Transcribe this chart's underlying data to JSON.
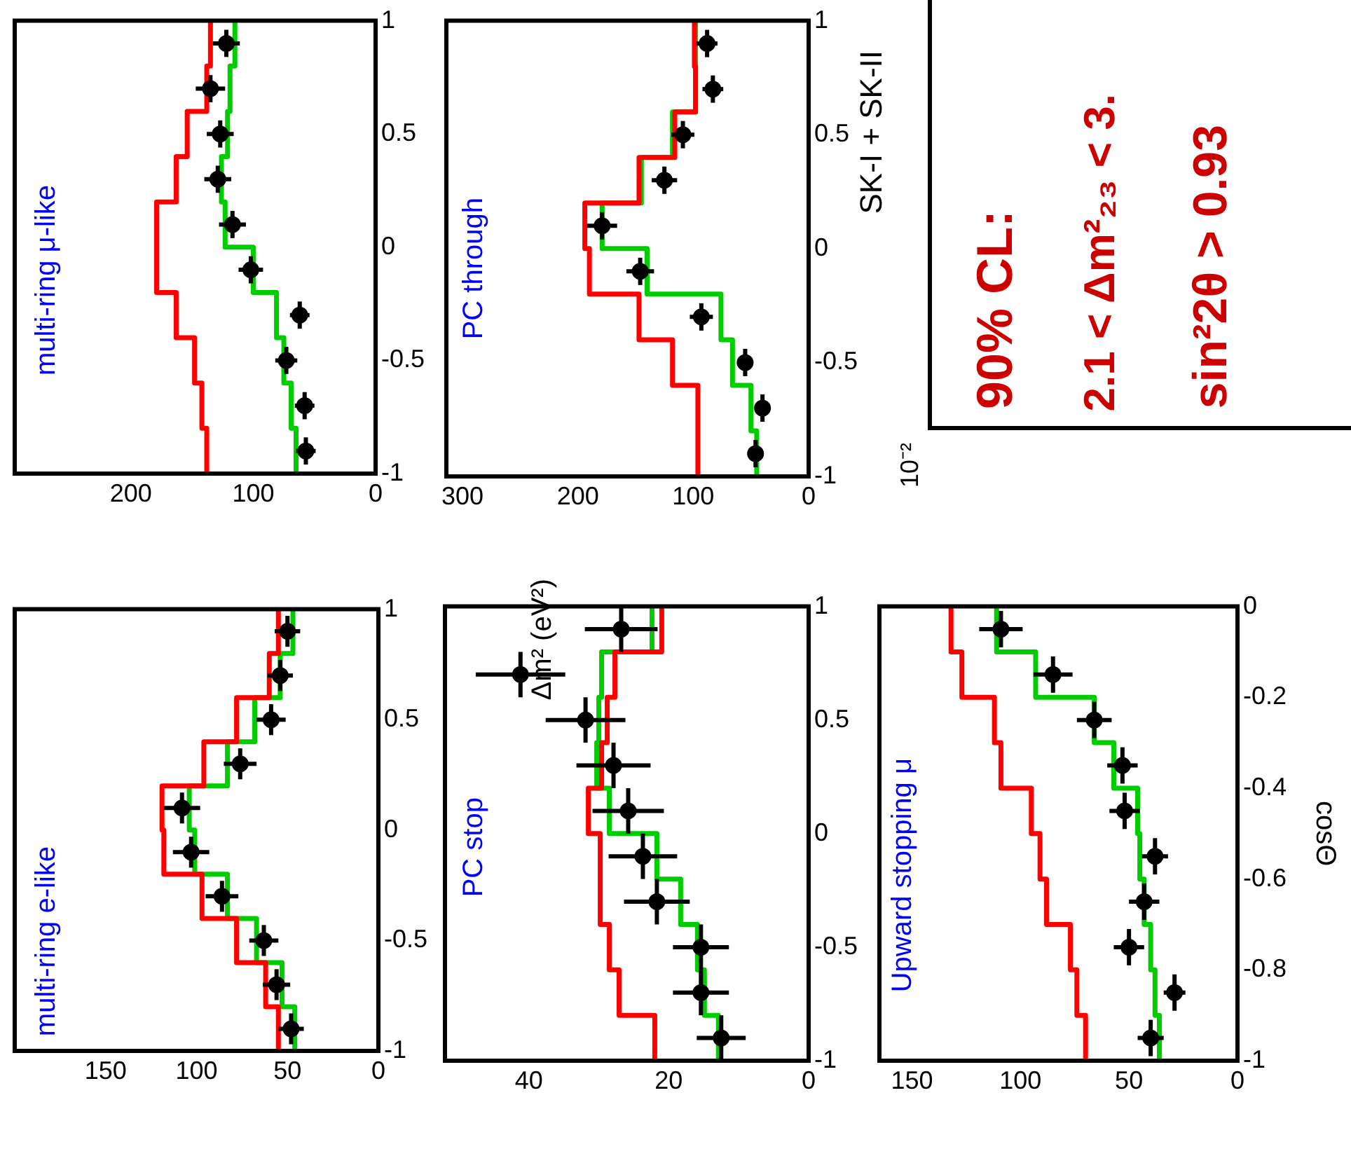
{
  "chart_data": [
    {
      "type": "line",
      "title": "multi-ring μ-like",
      "xlim": [
        295,
        0
      ],
      "xticks": [
        0,
        100,
        200
      ],
      "ylim": [
        -1,
        1
      ],
      "yticks": [
        -1,
        -0.5,
        0,
        0.5,
        1
      ],
      "series": [
        {
          "type": "line",
          "color": "#ff0000",
          "x": [
            138,
            138,
            142,
            142,
            148,
            148,
            163,
            163,
            179,
            179,
            163,
            163,
            154,
            154,
            138,
            138,
            135,
            135
          ],
          "values": [
            -1,
            -0.8,
            -0.8,
            -0.6,
            -0.6,
            -0.4,
            -0.4,
            -0.2,
            -0.2,
            0.2,
            0.2,
            0.4,
            0.4,
            0.6,
            0.6,
            0.8,
            0.8,
            1
          ]
        },
        {
          "type": "line",
          "color": "#00cc00",
          "x": [
            65,
            65,
            69,
            69,
            75,
            75,
            81,
            81,
            100,
            100,
            123,
            123,
            126,
            126,
            121,
            121,
            119,
            119,
            115,
            115
          ],
          "values": [
            -1,
            -0.8,
            -0.8,
            -0.6,
            -0.6,
            -0.4,
            -0.4,
            -0.2,
            -0.2,
            0,
            0,
            0.2,
            0.2,
            0.4,
            0.4,
            0.6,
            0.6,
            0.8,
            0.8,
            1
          ]
        },
        {
          "type": "scatter",
          "marker": "circle",
          "color": "#000000",
          "x": [
            57,
            58,
            73,
            62,
            102,
            117,
            129,
            127,
            135,
            122
          ],
          "values": [
            -0.9,
            -0.7,
            -0.5,
            -0.3,
            -0.1,
            0.1,
            0.3,
            0.5,
            0.7,
            0.9
          ],
          "xerrors": [
            8,
            8,
            9,
            8,
            10,
            11,
            11,
            11,
            12,
            11
          ],
          "errors": [
            0.06,
            0.06,
            0.06,
            0.06,
            0.06,
            0.06,
            0.06,
            0.06,
            0.06,
            0.06
          ]
        }
      ]
    },
    {
      "type": "line",
      "title": "PC through",
      "xlim": [
        314,
        0
      ],
      "xticks": [
        0,
        100,
        200,
        300
      ],
      "ylim": [
        -1,
        1
      ],
      "yticks": [
        -1,
        -0.5,
        0,
        0.5,
        1
      ],
      "annotations": [
        "SK-I + SK-II"
      ],
      "series": [
        {
          "type": "line",
          "color": "#ff0000",
          "x": [
            96,
            96,
            118,
            118,
            147,
            147,
            190,
            190,
            194,
            194,
            147,
            147,
            116,
            116,
            98,
            98,
            99,
            99
          ],
          "values": [
            -1,
            -0.6,
            -0.6,
            -0.4,
            -0.4,
            -0.2,
            -0.2,
            0,
            0,
            0.2,
            0.2,
            0.4,
            0.4,
            0.6,
            0.6,
            0.8,
            0.8,
            1
          ]
        },
        {
          "type": "line",
          "color": "#00cc00",
          "x": [
            45,
            45,
            50,
            50,
            66,
            66,
            76,
            76,
            140,
            140,
            179,
            179,
            145,
            145,
            118,
            118,
            98,
            98
          ],
          "values": [
            -1,
            -0.8,
            -0.8,
            -0.6,
            -0.6,
            -0.4,
            -0.4,
            -0.2,
            -0.2,
            0,
            0,
            0.2,
            0.2,
            0.4,
            0.4,
            0.6,
            0.6,
            1
          ]
        },
        {
          "type": "scatter",
          "marker": "circle",
          "color": "#000000",
          "x": [
            46,
            40,
            55,
            93,
            146,
            179,
            125,
            109,
            83,
            88
          ],
          "values": [
            -0.9,
            -0.7,
            -0.5,
            -0.3,
            -0.1,
            0.1,
            0.3,
            0.5,
            0.7,
            0.9
          ],
          "xerrors": [
            7,
            6,
            7,
            10,
            12,
            13,
            11,
            10,
            9,
            9
          ],
          "errors": [
            0.06,
            0.06,
            0.06,
            0.06,
            0.06,
            0.06,
            0.06,
            0.06,
            0.06,
            0.06
          ]
        }
      ]
    },
    {
      "type": "other",
      "annotations": [
        "90% CL:",
        "2.1 < Δm²₂₃ < 3.",
        "sin²2θ > 0.93",
        "Δm² (eV²)",
        "10⁻²"
      ]
    },
    {
      "type": "line",
      "title": "multi-ring e-like",
      "xlim": [
        200,
        0
      ],
      "xticks": [
        0,
        50,
        100,
        150
      ],
      "ylim": [
        -1,
        1
      ],
      "yticks": [
        -1,
        -0.5,
        0,
        0.5,
        1
      ],
      "series": [
        {
          "type": "line",
          "color": "#ff0000",
          "x": [
            55,
            55,
            62,
            62,
            78,
            78,
            97,
            97,
            118,
            118,
            119,
            119,
            96,
            96,
            78,
            78,
            60,
            60,
            55,
            55
          ],
          "values": [
            -1,
            -0.8,
            -0.8,
            -0.6,
            -0.6,
            -0.4,
            -0.4,
            -0.2,
            -0.2,
            0,
            0,
            0.2,
            0.2,
            0.4,
            0.4,
            0.6,
            0.6,
            0.8,
            0.8,
            1
          ]
        },
        {
          "type": "line",
          "color": "#00cc00",
          "x": [
            46,
            46,
            53,
            53,
            67,
            67,
            83,
            83,
            101,
            101,
            104,
            104,
            83,
            83,
            68,
            68,
            54,
            54,
            47,
            47
          ],
          "values": [
            -1,
            -0.8,
            -0.8,
            -0.6,
            -0.6,
            -0.4,
            -0.4,
            -0.2,
            -0.2,
            0,
            0,
            0.2,
            0.2,
            0.4,
            0.4,
            0.6,
            0.6,
            0.8,
            0.8,
            1
          ]
        },
        {
          "type": "scatter",
          "marker": "circle",
          "color": "#000000",
          "x": [
            48,
            56,
            63,
            86,
            103,
            108,
            76,
            59,
            54,
            50
          ],
          "values": [
            -0.9,
            -0.7,
            -0.5,
            -0.3,
            -0.1,
            0.1,
            0.3,
            0.5,
            0.7,
            0.9
          ],
          "xerrors": [
            7,
            7.5,
            8,
            9,
            10,
            10,
            9,
            8,
            7,
            7
          ],
          "errors": [
            0.07,
            0.07,
            0.07,
            0.07,
            0.07,
            0.07,
            0.07,
            0.07,
            0.07,
            0.07
          ]
        }
      ]
    },
    {
      "type": "line",
      "title": "PC stop",
      "xlim": [
        52,
        0
      ],
      "xticks": [
        0,
        20,
        40
      ],
      "ylim": [
        -1,
        1
      ],
      "yticks": [
        -1,
        -0.5,
        0,
        0.5,
        1
      ],
      "series": [
        {
          "type": "line",
          "color": "#ff0000",
          "x": [
            22,
            22,
            27.1,
            27.1,
            28.5,
            28.5,
            29.8,
            29.8,
            31.5,
            31.5,
            29.6,
            29.6,
            28.8,
            28.8,
            27.7,
            27.7,
            21,
            21
          ],
          "values": [
            -1,
            -0.8,
            -0.8,
            -0.6,
            -0.6,
            -0.4,
            -0.4,
            0,
            0,
            0.2,
            0.2,
            0.4,
            0.4,
            0.6,
            0.6,
            0.8,
            0.8,
            1
          ]
        },
        {
          "type": "line",
          "color": "#00cc00",
          "x": [
            12.9,
            12.9,
            14.9,
            14.9,
            15.9,
            15.9,
            18.3,
            18.3,
            21.7,
            21.7,
            28.5,
            28.5,
            30.3,
            30.3,
            30,
            30,
            29.6,
            29.6,
            22.4,
            22.4
          ],
          "values": [
            -1,
            -0.8,
            -0.8,
            -0.6,
            -0.6,
            -0.4,
            -0.4,
            -0.2,
            -0.2,
            0,
            0,
            0.2,
            0.2,
            0.4,
            0.4,
            0.6,
            0.6,
            0.8,
            0.8,
            1
          ]
        },
        {
          "type": "scatter",
          "marker": "circle",
          "color": "#000000",
          "x": [
            12.5,
            15.4,
            15.4,
            21.7,
            23.7,
            25.8,
            27.9,
            31.9,
            41.2,
            26.8
          ],
          "values": [
            -0.9,
            -0.7,
            -0.5,
            -0.3,
            -0.1,
            0.1,
            0.3,
            0.5,
            0.7,
            0.9
          ],
          "xerrors": [
            3.5,
            4,
            4,
            4.7,
            4.9,
            5.1,
            5.3,
            5.7,
            6.4,
            5.2
          ],
          "errors": [
            0.1,
            0.1,
            0.1,
            0.1,
            0.1,
            0.1,
            0.1,
            0.1,
            0.1,
            0.1
          ]
        }
      ]
    },
    {
      "type": "line",
      "title": "Upward stopping μ",
      "ylabel": "cosΘ",
      "xlim": [
        165,
        0
      ],
      "xticks": [
        0,
        50,
        100,
        150
      ],
      "ylim": [
        -1,
        0
      ],
      "yticks": [
        -1,
        -0.8,
        -0.6,
        -0.4,
        -0.2,
        0
      ],
      "series": [
        {
          "type": "line",
          "color": "#ff0000",
          "x": [
            70,
            70,
            74,
            74,
            77,
            77,
            88,
            88,
            91,
            91,
            95,
            95,
            109,
            109,
            112,
            112,
            127,
            127,
            132,
            132
          ],
          "values": [
            -1,
            -0.9,
            -0.9,
            -0.8,
            -0.8,
            -0.7,
            -0.7,
            -0.6,
            -0.6,
            -0.5,
            -0.5,
            -0.4,
            -0.4,
            -0.3,
            -0.3,
            -0.2,
            -0.2,
            -0.1,
            -0.1,
            0
          ]
        },
        {
          "type": "line",
          "color": "#00cc00",
          "x": [
            36,
            36,
            38,
            38,
            40,
            40,
            43,
            43,
            45,
            45,
            46,
            46,
            57,
            57,
            66,
            66,
            93,
            93,
            111,
            111
          ],
          "values": [
            -1,
            -0.9,
            -0.9,
            -0.8,
            -0.8,
            -0.7,
            -0.7,
            -0.6,
            -0.6,
            -0.5,
            -0.5,
            -0.4,
            -0.4,
            -0.3,
            -0.3,
            -0.2,
            -0.2,
            -0.1,
            -0.1,
            0
          ]
        },
        {
          "type": "scatter",
          "marker": "circle",
          "color": "#000000",
          "x": [
            40,
            29,
            50,
            43,
            38,
            52,
            53,
            66,
            85,
            109
          ],
          "values": [
            -0.95,
            -0.85,
            -0.75,
            -0.65,
            -0.55,
            -0.45,
            -0.35,
            -0.25,
            -0.15,
            -0.05
          ],
          "xerrors": [
            6,
            5,
            7,
            7,
            6,
            7,
            7,
            8,
            9,
            10
          ],
          "errors": [
            0.04,
            0.04,
            0.04,
            0.04,
            0.04,
            0.04,
            0.04,
            0.04,
            0.04,
            0.04
          ]
        }
      ]
    }
  ]
}
